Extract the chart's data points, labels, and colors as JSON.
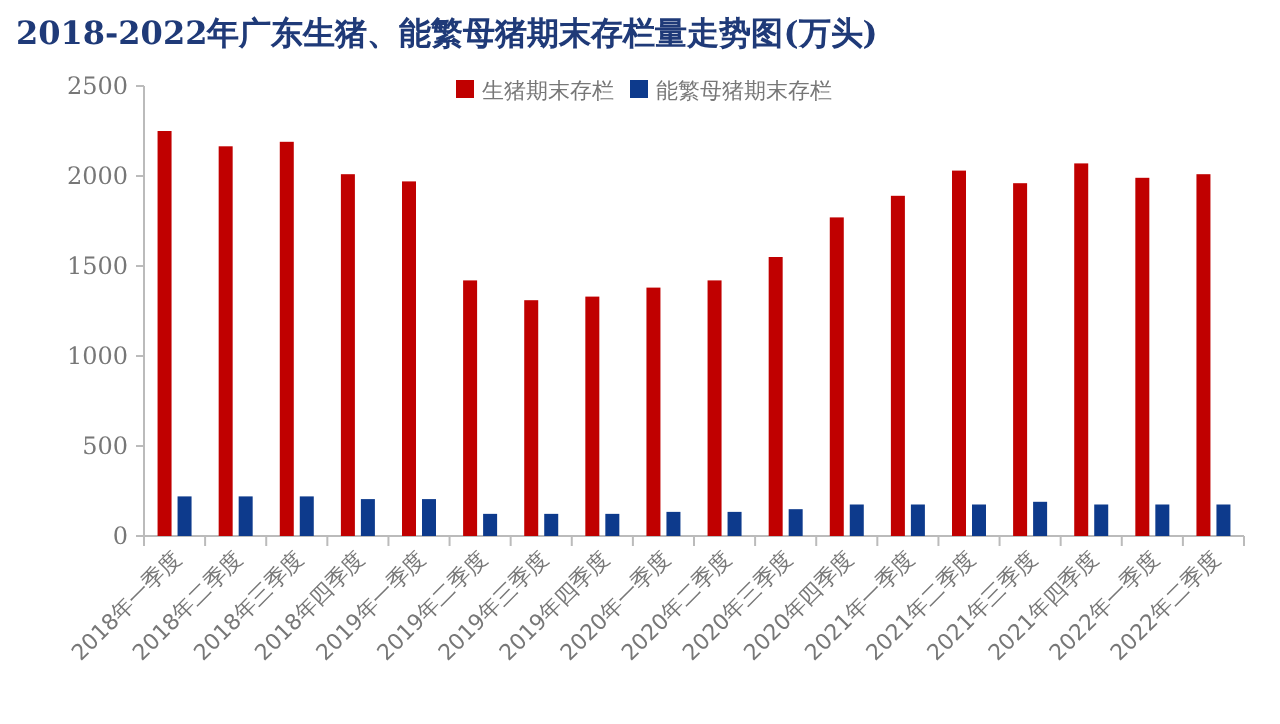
{
  "chart_data": {
    "type": "bar",
    "title": "2018-2022年广东生猪、能繁母猪期末存栏量走势图(万头)",
    "categories": [
      "2018年一季度",
      "2018年二季度",
      "2018年三季度",
      "2018年四季度",
      "2019年一季度",
      "2019年二季度",
      "2019年三季度",
      "2019年四季度",
      "2020年一季度",
      "2020年二季度",
      "2020年三季度",
      "2020年四季度",
      "2021年一季度",
      "2021年二季度",
      "2021年三季度",
      "2021年四季度",
      "2022年一季度",
      "2022年二季度"
    ],
    "series": [
      {
        "name": "生猪期末存栏",
        "color": "#c00000",
        "values": [
          2250,
          2165,
          2190,
          2010,
          1970,
          1420,
          1310,
          1330,
          1380,
          1420,
          1550,
          1770,
          1890,
          2030,
          1960,
          2070,
          1990,
          2010
        ]
      },
      {
        "name": "能繁母猪期末存栏",
        "color": "#0d3a8c",
        "values": [
          220,
          220,
          220,
          205,
          205,
          123,
          123,
          123,
          134,
          134,
          149,
          175,
          175,
          175,
          190,
          175,
          175,
          175
        ]
      }
    ],
    "ylim": [
      0,
      2500
    ],
    "yticks": [
      0,
      500,
      1000,
      1500,
      2000,
      2500
    ],
    "grid": false,
    "legend": "top"
  }
}
